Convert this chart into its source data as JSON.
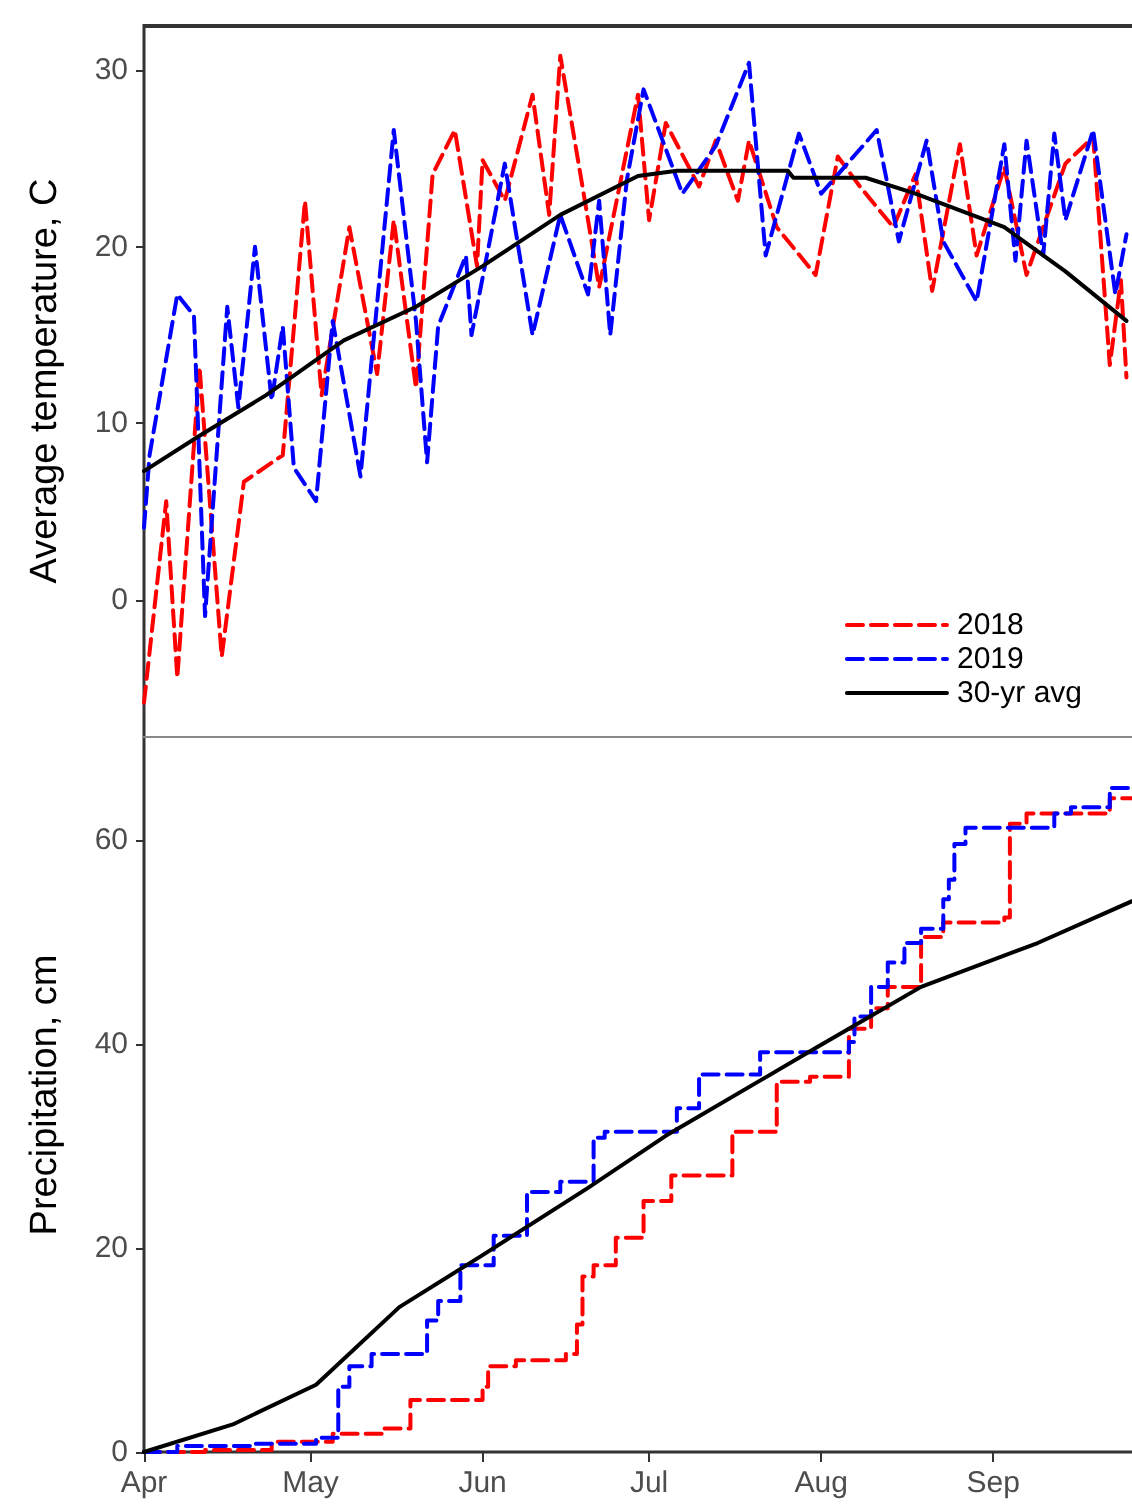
{
  "chart_data": [
    {
      "type": "line",
      "ylabel": "Average temperature, C",
      "xlim": [
        "--04-01",
        "--09-26"
      ],
      "ylim": [
        -7.8,
        32.6
      ],
      "yticks": [
        0,
        10,
        20,
        30
      ],
      "tick_labels": "y",
      "grid": false,
      "legend": "bottom right",
      "marker": "none",
      "series": [
        {
          "name": "2018",
          "color": "#ff0000",
          "line_style": "dashed",
          "x": [
            "--04-01",
            "--04-05",
            "--04-07",
            "--04-11",
            "--04-15",
            "--04-19",
            "--04-26",
            "--04-30",
            "--05-03",
            "--05-08",
            "--05-13",
            "--05-16",
            "--05-20",
            "--05-23",
            "--05-27",
            "--05-31",
            "--06-01",
            "--06-05",
            "--06-10",
            "--06-13",
            "--06-15",
            "--06-19",
            "--06-22",
            "--06-29",
            "--07-01",
            "--07-04",
            "--07-10",
            "--07-13",
            "--07-17",
            "--07-19",
            "--07-24",
            "--07-31",
            "--08-04",
            "--08-08",
            "--08-14",
            "--08-18",
            "--08-21",
            "--08-26",
            "--08-29",
            "--09-03",
            "--09-07",
            "--09-14",
            "--09-19",
            "--09-22",
            "--09-24",
            "--09-25"
          ],
          "values": [
            -5.8,
            5.6,
            -4.4,
            13.2,
            -3.2,
            6.7,
            8.2,
            22.6,
            11.6,
            21.1,
            12.8,
            21.5,
            12,
            24.1,
            26.6,
            18.9,
            24.9,
            22.6,
            28.6,
            21.8,
            30.8,
            23.4,
            17.7,
            28.6,
            21.5,
            27,
            23.4,
            26,
            22.6,
            26,
            21.1,
            18.4,
            25.1,
            23.4,
            21.1,
            24.1,
            17.5,
            25.8,
            19.5,
            24.5,
            18.4,
            24.7,
            26.2,
            13.3,
            18.1,
            12.6
          ]
        },
        {
          "name": "2019",
          "color": "#0000ff",
          "line_style": "dashed",
          "x": [
            "--04-01",
            "--04-02",
            "--04-07",
            "--04-10",
            "--04-12",
            "--04-16",
            "--04-18",
            "--04-21",
            "--04-24",
            "--04-26",
            "--04-28",
            "--05-02",
            "--05-05",
            "--05-10",
            "--05-16",
            "--05-20",
            "--05-22",
            "--05-24",
            "--05-29",
            "--05-30",
            "--06-05",
            "--06-10",
            "--06-15",
            "--06-20",
            "--06-22",
            "--06-24",
            "--06-27",
            "--06-30",
            "--07-07",
            "--07-13",
            "--07-19",
            "--07-22",
            "--07-28",
            "--08-01",
            "--08-11",
            "--08-15",
            "--08-20",
            "--08-23",
            "--08-29",
            "--09-03",
            "--09-05",
            "--09-07",
            "--09-10",
            "--09-12",
            "--09-14",
            "--09-19",
            "--09-23",
            "--09-25"
          ],
          "values": [
            4.1,
            8.2,
            17.3,
            16.1,
            -0.9,
            16.6,
            10.9,
            20,
            11.3,
            15.5,
            7.5,
            5.6,
            15.8,
            7,
            26.6,
            15.8,
            7.8,
            15.5,
            19.5,
            15,
            24.7,
            15,
            21.8,
            17.3,
            22.6,
            15,
            23.8,
            28.9,
            23,
            25.7,
            30.4,
            19.5,
            26.4,
            23,
            26.6,
            20.3,
            26,
            20.3,
            16.9,
            25.8,
            19.2,
            26,
            19.5,
            26.4,
            21.5,
            26.6,
            17.3,
            20.7
          ]
        },
        {
          "name": "30-yr avg",
          "color": "#000000",
          "line_style": "solid",
          "x": [
            "--04-01",
            "--04-11",
            "--04-23",
            "--05-07",
            "--05-20",
            "--06-01",
            "--06-15",
            "--06-29",
            "--07-06",
            "--07-26",
            "--07-27",
            "--08-09",
            "--08-18",
            "--09-03",
            "--09-14",
            "--09-25"
          ],
          "values": [
            7.3,
            9.3,
            11.6,
            14.7,
            16.6,
            18.9,
            21.8,
            24,
            24.3,
            24.3,
            23.9,
            23.9,
            23,
            21.1,
            18.6,
            15.8
          ]
        }
      ]
    },
    {
      "type": "step",
      "ylabel": "Precipitation, cm",
      "xlim": [
        "--04-01",
        "--09-26"
      ],
      "xticks": [
        {
          "value": "--04-01",
          "label": "Apr"
        },
        {
          "value": "--05-01",
          "label": "May"
        },
        {
          "value": "--06-01",
          "label": "Jun"
        },
        {
          "value": "--07-01",
          "label": "Jul"
        },
        {
          "value": "--08-01",
          "label": "Aug"
        },
        {
          "value": "--09-01",
          "label": "Sep"
        }
      ],
      "ylim": [
        0,
        70
      ],
      "yticks": [
        0,
        20,
        40,
        60
      ],
      "grid": false,
      "legend": false,
      "marker": "none",
      "series": [
        {
          "color": "#ff0000",
          "line_style": "dashed",
          "x": [
            "--04-01",
            "--04-12",
            "--04-24",
            "--05-05",
            "--05-14",
            "--05-19",
            "--06-01",
            "--06-02",
            "--06-07",
            "--06-16",
            "--06-18",
            "--06-19",
            "--06-21",
            "--06-25",
            "--06-30",
            "--07-05",
            "--07-16",
            "--07-24",
            "--07-30",
            "--08-06",
            "--08-10",
            "--08-13",
            "--08-19",
            "--08-23",
            "--09-03",
            "--09-04",
            "--09-07",
            "--09-22",
            "--09-26"
          ],
          "values": [
            0,
            0.2,
            1,
            1.8,
            2.3,
            5.1,
            6.4,
            8.4,
            9,
            9.6,
            12.5,
            17.2,
            18.3,
            21,
            24.6,
            27.1,
            31.4,
            36.3,
            36.8,
            41.5,
            43.5,
            45.6,
            50.5,
            51.9,
            52.4,
            61.6,
            62.6,
            64.1,
            64.1
          ]
        },
        {
          "color": "#0000ff",
          "line_style": "dashed",
          "x": [
            "--04-01",
            "--04-07",
            "--04-21",
            "--05-02",
            "--05-06",
            "--05-08",
            "--05-12",
            "--05-22",
            "--05-24",
            "--05-28",
            "--06-03",
            "--06-09",
            "--06-15",
            "--06-21",
            "--06-23",
            "--07-06",
            "--07-10",
            "--07-21",
            "--08-06",
            "--08-07",
            "--08-10",
            "--08-13",
            "--08-16",
            "--08-19",
            "--08-23",
            "--08-24",
            "--08-25",
            "--08-27",
            "--09-12",
            "--09-15",
            "--09-22",
            "--09-26"
          ],
          "values": [
            0,
            0.6,
            0.8,
            1.4,
            6.4,
            8.4,
            9.6,
            12.9,
            14.8,
            18.3,
            21.2,
            25.5,
            26.5,
            30.8,
            31.4,
            33.7,
            37,
            39.2,
            40.2,
            42.7,
            45.6,
            48,
            49.9,
            51.3,
            54.2,
            56.1,
            59.6,
            61.2,
            62.6,
            63.2,
            65.1,
            65.1
          ]
        },
        {
          "type": "line",
          "color": "#000000",
          "line_style": "solid",
          "x": [
            "--04-01",
            "--04-17",
            "--05-02",
            "--05-17",
            "--06-01",
            "--06-20",
            "--07-04",
            "--07-31",
            "--08-19",
            "--09-09",
            "--09-26"
          ],
          "values": [
            0,
            2.7,
            6.6,
            14.2,
            19.3,
            25.9,
            31,
            39.6,
            45.6,
            49.9,
            54
          ]
        }
      ]
    }
  ]
}
